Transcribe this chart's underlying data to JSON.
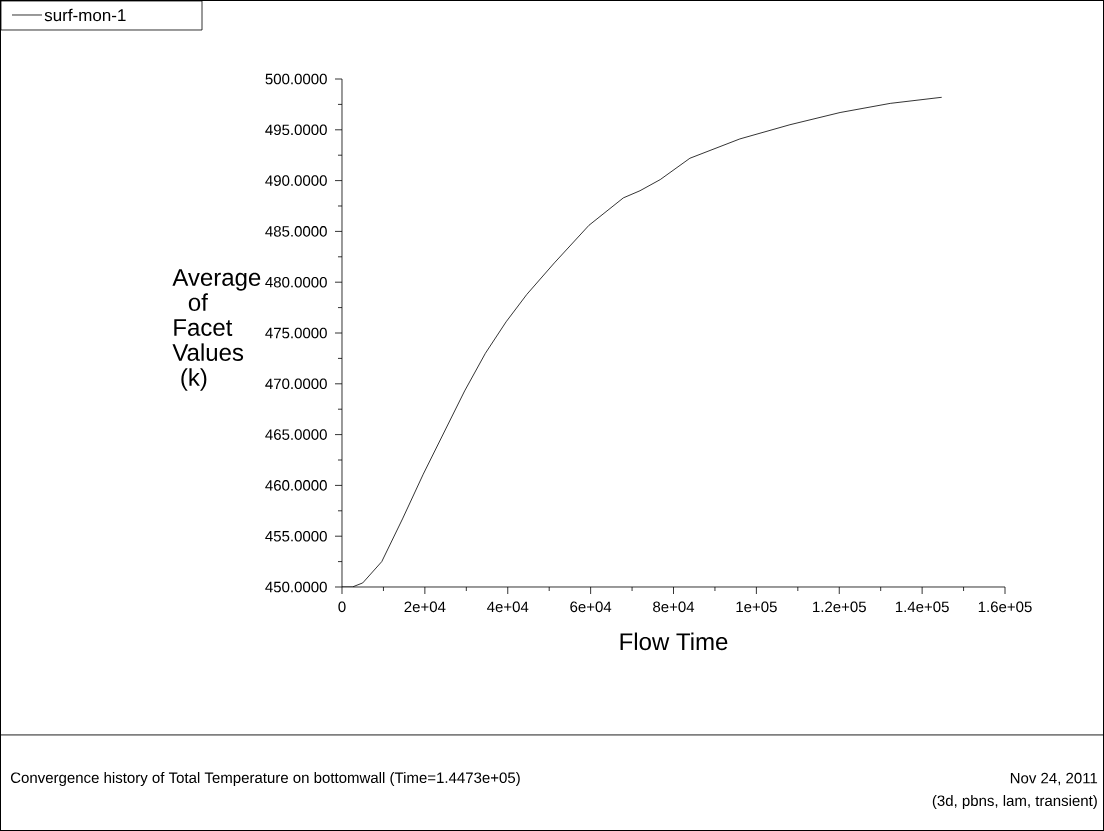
{
  "chart_data": {
    "type": "line",
    "x": [
      0,
      2500,
      5000,
      9600,
      14600,
      19600,
      24600,
      29600,
      34600,
      39600,
      44600,
      51250,
      59600,
      67900,
      71900,
      76800,
      83960,
      96000,
      108100,
      120200,
      132300,
      144730
    ],
    "series": [
      {
        "name": "surf-mon-1",
        "color": "#000000",
        "values": [
          450.0,
          450.0,
          450.4,
          452.5,
          456.7,
          461.1,
          465.2,
          469.3,
          473.0,
          476.1,
          478.8,
          481.9,
          485.6,
          488.3,
          489.0,
          490.1,
          492.2,
          494.1,
          495.5,
          496.7,
          497.6,
          498.2
        ]
      }
    ],
    "xlabel": "Flow Time",
    "ylabel": "Average of Facet Values (k)",
    "xlim": [
      0,
      160000
    ],
    "ylim": [
      450,
      500
    ],
    "xticks": [
      0,
      {
        "value": 20000,
        "label": "2e+04"
      },
      {
        "value": 40000,
        "label": "4e+04"
      },
      {
        "value": 60000,
        "label": "6e+04"
      },
      {
        "value": 80000,
        "label": "8e+04"
      },
      {
        "value": 100000,
        "label": "1e+05"
      },
      {
        "value": 120000,
        "label": "1.2e+05"
      },
      {
        "value": 140000,
        "label": "1.4e+05"
      },
      {
        "value": 160000,
        "label": "1.6e+05"
      }
    ],
    "yticks": [
      {
        "value": 450,
        "label": "450.0000"
      },
      {
        "value": 455,
        "label": "455.0000"
      },
      {
        "value": 460,
        "label": "460.0000"
      },
      {
        "value": 465,
        "label": "465.0000"
      },
      {
        "value": 470,
        "label": "470.0000"
      },
      {
        "value": 475,
        "label": "475.0000"
      },
      {
        "value": 480,
        "label": "480.0000"
      },
      {
        "value": 485,
        "label": "485.0000"
      },
      {
        "value": 490,
        "label": "490.0000"
      },
      {
        "value": 495,
        "label": "495.0000"
      },
      {
        "value": 500,
        "label": "500.0000"
      }
    ],
    "legend": "top left",
    "marker": "none",
    "line_style": "solid",
    "annotations": [
      "Convergence history of Total Temperature on bottomwall  (Time=1.4473e+05)",
      "Nov 24, 2011",
      "(3d, pbns, lam, transient)"
    ]
  }
}
